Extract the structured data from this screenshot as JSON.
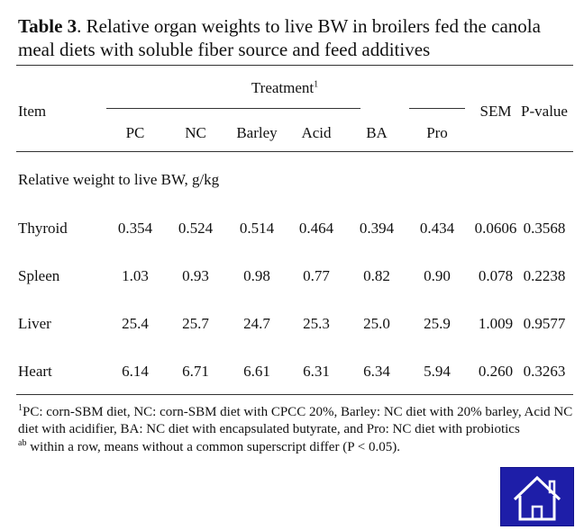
{
  "title": {
    "label": "Table 3",
    "text": ". Relative organ weights to live BW in broilers fed the canola meal diets with soluble fiber source and feed additives"
  },
  "table": {
    "item_header": "Item",
    "group_header": "Treatment",
    "group_header_note": "1",
    "columns": [
      "PC",
      "NC",
      "Barley",
      "Acid",
      "BA",
      "Pro",
      "SEM",
      "P-value"
    ],
    "section": "Relative weight to live BW, g/kg",
    "rows": [
      {
        "label": "Thyroid",
        "values": [
          "0.354",
          "0.524",
          "0.514",
          "0.464",
          "0.394",
          "0.434",
          "0.0606",
          "0.3568"
        ]
      },
      {
        "label": "Spleen",
        "values": [
          "1.03",
          "0.93",
          "0.98",
          "0.77",
          "0.82",
          "0.90",
          "0.078",
          "0.2238"
        ]
      },
      {
        "label": "Liver",
        "values": [
          "25.4",
          "25.7",
          "24.7",
          "25.3",
          "25.0",
          "25.9",
          "1.009",
          "0.9577"
        ]
      },
      {
        "label": "Heart",
        "values": [
          "6.14",
          "6.71",
          "6.61",
          "6.31",
          "6.34",
          "5.94",
          "0.260",
          "0.3263"
        ]
      }
    ]
  },
  "footnotes": [
    {
      "mark": "1",
      "text": "PC: corn-SBM diet, NC: corn-SBM diet with CPCC 20%, Barley: NC diet with 20% barley, Acid NC diet with acidifier, BA: NC diet with encapsulated butyrate, and Pro: NC diet with probiotics"
    },
    {
      "mark": "ab",
      "text": " within a row, means without a common superscript differ (P < 0.05)."
    }
  ]
}
